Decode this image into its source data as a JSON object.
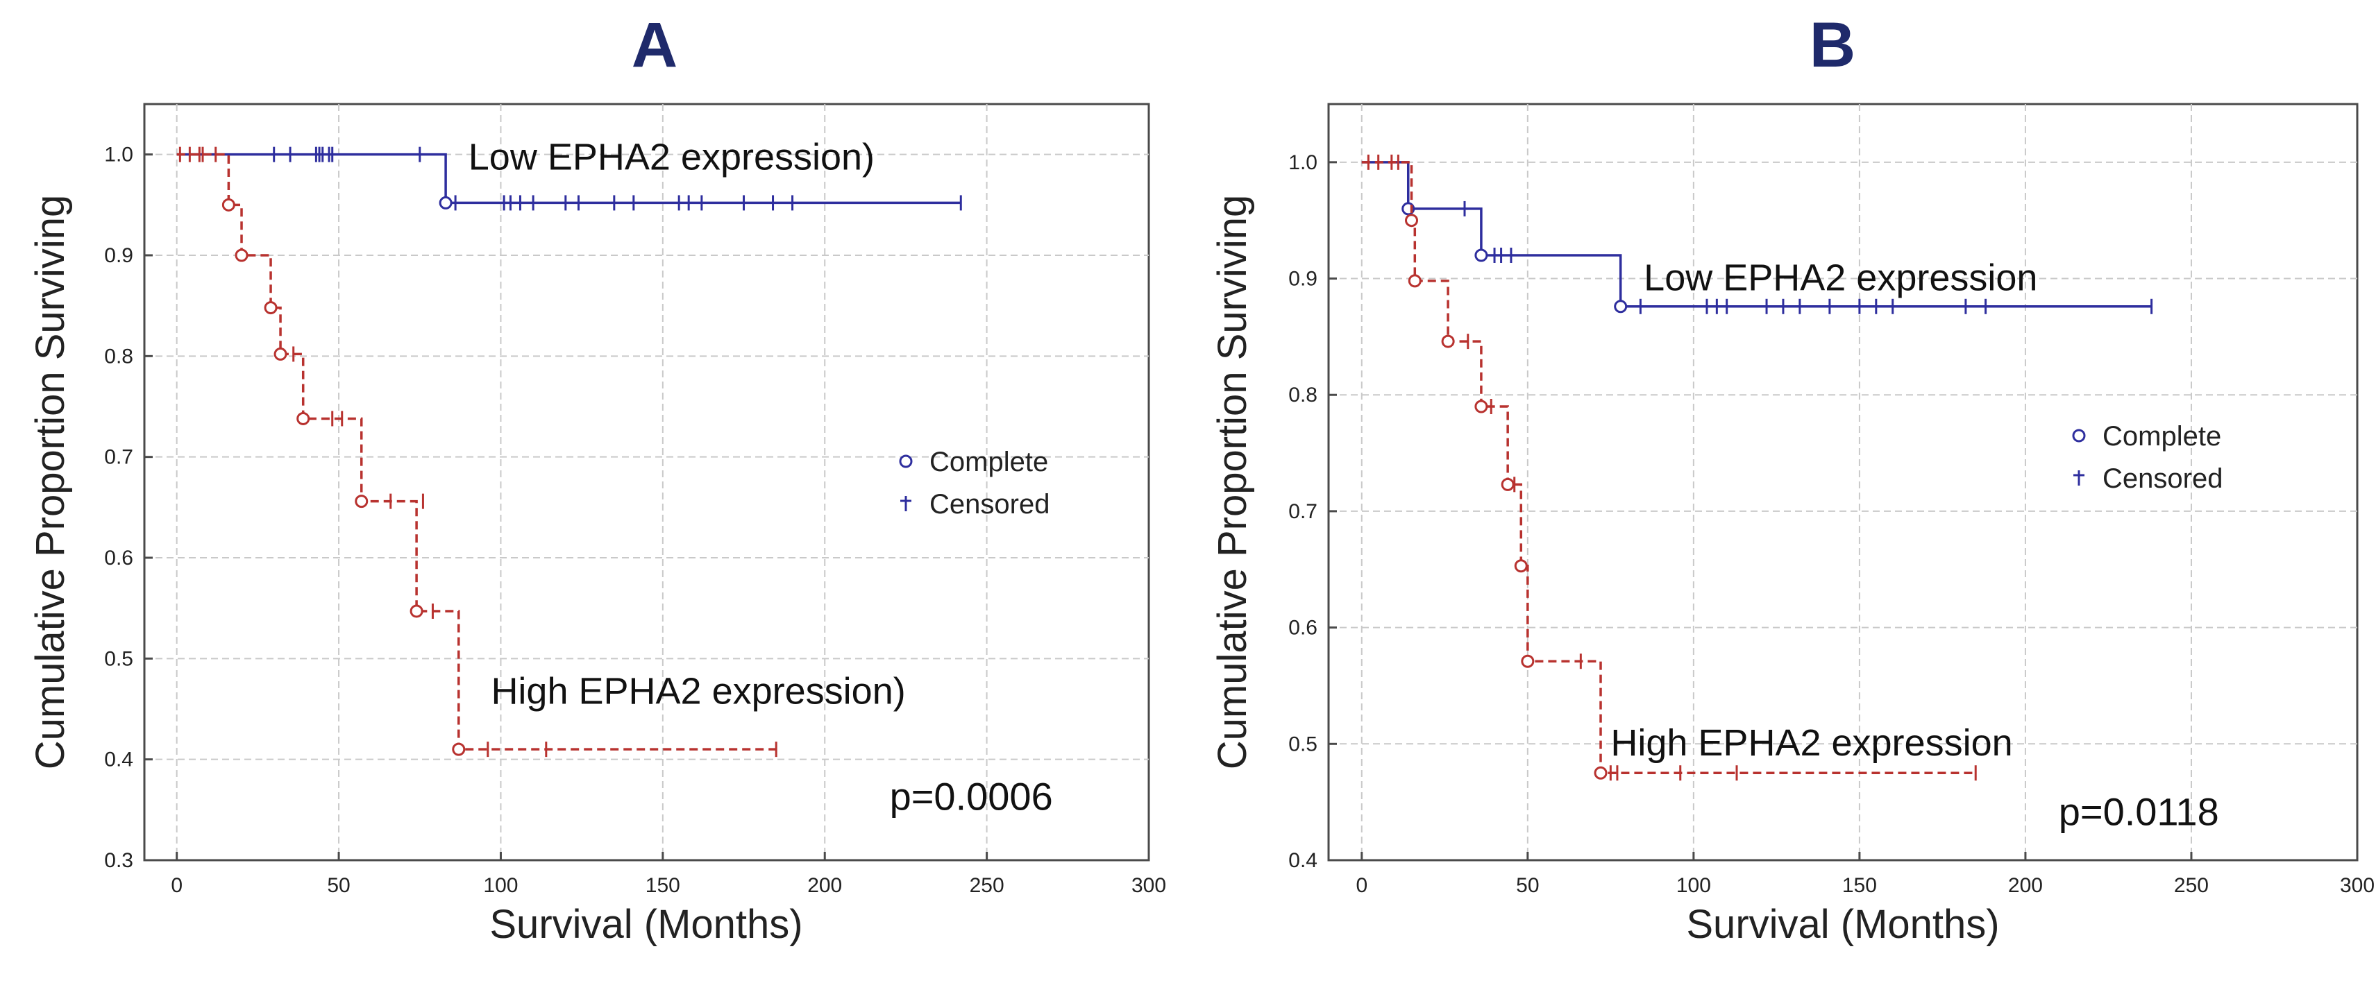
{
  "colors": {
    "low": "#2e2e9e",
    "high": "#b8322f",
    "title": "#1f2a6b"
  },
  "legend": {
    "complete": "Complete",
    "censored": "Censored"
  },
  "chart_data": [
    {
      "type": "line",
      "panel": "A",
      "title": "A",
      "xlabel": "Survival (Months)",
      "ylabel": "Cumulative Proportion Surviving",
      "xlim": [
        -10,
        300
      ],
      "ylim": [
        0.3,
        1.05
      ],
      "xticks": [
        0,
        50,
        100,
        150,
        200,
        250,
        300
      ],
      "yticks": [
        0.3,
        0.4,
        0.5,
        0.6,
        0.7,
        0.8,
        0.9,
        1.0
      ],
      "ytick_labels": [
        "0.3",
        "0.4",
        "0.5",
        "0.6",
        "0.7",
        "0.8",
        "0.9",
        "1.0"
      ],
      "legend_position": "center-right",
      "annotations": [
        {
          "text": "Low EPHA2 expression)",
          "x": 90,
          "y": 0.985
        },
        {
          "text": "High EPHA2 expression)",
          "x": 97,
          "y": 0.455
        },
        {
          "text": "p=0.0006",
          "x": 220,
          "y": 0.35
        }
      ],
      "pvalue": "p=0.0006",
      "series": [
        {
          "name": "Low EPHA2 expression",
          "color_key": "low",
          "dash": false,
          "steps": [
            [
              0,
              1.0
            ],
            [
              83,
              0.952
            ],
            [
              242,
              0.952
            ]
          ],
          "events": [
            [
              83,
              0.952
            ]
          ],
          "censored": [
            [
              30,
              1.0
            ],
            [
              35,
              1.0
            ],
            [
              43,
              1.0
            ],
            [
              44,
              1.0
            ],
            [
              45,
              1.0
            ],
            [
              47,
              1.0
            ],
            [
              48,
              1.0
            ],
            [
              75,
              1.0
            ],
            [
              86,
              0.952
            ],
            [
              101,
              0.952
            ],
            [
              103,
              0.952
            ],
            [
              106,
              0.952
            ],
            [
              110,
              0.952
            ],
            [
              120,
              0.952
            ],
            [
              124,
              0.952
            ],
            [
              135,
              0.952
            ],
            [
              141,
              0.952
            ],
            [
              155,
              0.952
            ],
            [
              158,
              0.952
            ],
            [
              162,
              0.952
            ],
            [
              175,
              0.952
            ],
            [
              184,
              0.952
            ],
            [
              190,
              0.952
            ],
            [
              242,
              0.952
            ]
          ]
        },
        {
          "name": "High EPHA2 expression",
          "color_key": "high",
          "dash": true,
          "steps": [
            [
              0,
              1.0
            ],
            [
              16,
              0.95
            ],
            [
              20,
              0.9
            ],
            [
              29,
              0.848
            ],
            [
              32,
              0.802
            ],
            [
              39,
              0.738
            ],
            [
              57,
              0.656
            ],
            [
              74,
              0.547
            ],
            [
              87,
              0.41
            ],
            [
              185,
              0.41
            ]
          ],
          "events": [
            [
              16,
              0.95
            ],
            [
              20,
              0.9
            ],
            [
              29,
              0.848
            ],
            [
              32,
              0.802
            ],
            [
              39,
              0.738
            ],
            [
              57,
              0.656
            ],
            [
              74,
              0.547
            ],
            [
              87,
              0.41
            ]
          ],
          "censored": [
            [
              1,
              1.0
            ],
            [
              4,
              1.0
            ],
            [
              7,
              1.0
            ],
            [
              8,
              1.0
            ],
            [
              12,
              1.0
            ],
            [
              36,
              0.802
            ],
            [
              48,
              0.738
            ],
            [
              51,
              0.738
            ],
            [
              66,
              0.656
            ],
            [
              76,
              0.656
            ],
            [
              79,
              0.547
            ],
            [
              96,
              0.41
            ],
            [
              114,
              0.41
            ],
            [
              185,
              0.41
            ]
          ]
        }
      ]
    },
    {
      "type": "line",
      "panel": "B",
      "title": "B",
      "xlabel": "Survival (Months)",
      "ylabel": "Cumulative Proportion Surviving",
      "xlim": [
        -10,
        300
      ],
      "ylim": [
        0.4,
        1.05
      ],
      "xticks": [
        0,
        50,
        100,
        150,
        200,
        250,
        300
      ],
      "yticks": [
        0.4,
        0.5,
        0.6,
        0.7,
        0.8,
        0.9,
        1.0
      ],
      "ytick_labels": [
        "0.4",
        "0.5",
        "0.6",
        "0.7",
        "0.8",
        "0.9",
        "1.0"
      ],
      "legend_position": "center-right",
      "annotations": [
        {
          "text": "Low EPHA2 expression",
          "x": 85,
          "y": 0.89
        },
        {
          "text": "High EPHA2 expression",
          "x": 75,
          "y": 0.49
        },
        {
          "text": "p=0.0118",
          "x": 210,
          "y": 0.43
        }
      ],
      "pvalue": "p=0.0118",
      "series": [
        {
          "name": "Low EPHA2 expression",
          "color_key": "low",
          "dash": false,
          "steps": [
            [
              0,
              1.0
            ],
            [
              14,
              0.96
            ],
            [
              36,
              0.92
            ],
            [
              78,
              0.876
            ],
            [
              238,
              0.876
            ]
          ],
          "events": [
            [
              14,
              0.96
            ],
            [
              36,
              0.92
            ],
            [
              78,
              0.876
            ]
          ],
          "censored": [
            [
              31,
              0.96
            ],
            [
              40,
              0.92
            ],
            [
              42,
              0.92
            ],
            [
              45,
              0.92
            ],
            [
              84,
              0.876
            ],
            [
              104,
              0.876
            ],
            [
              107,
              0.876
            ],
            [
              110,
              0.876
            ],
            [
              122,
              0.876
            ],
            [
              127,
              0.876
            ],
            [
              132,
              0.876
            ],
            [
              141,
              0.876
            ],
            [
              150,
              0.876
            ],
            [
              155,
              0.876
            ],
            [
              160,
              0.876
            ],
            [
              182,
              0.876
            ],
            [
              188,
              0.876
            ],
            [
              238,
              0.876
            ]
          ]
        },
        {
          "name": "High EPHA2 expression",
          "color_key": "high",
          "dash": true,
          "steps": [
            [
              0,
              1.0
            ],
            [
              15,
              0.95
            ],
            [
              16,
              0.898
            ],
            [
              26,
              0.846
            ],
            [
              36,
              0.79
            ],
            [
              44,
              0.723
            ],
            [
              48,
              0.653
            ],
            [
              50,
              0.571
            ],
            [
              72,
              0.475
            ],
            [
              185,
              0.475
            ]
          ],
          "events": [
            [
              15,
              0.95
            ],
            [
              16,
              0.898
            ],
            [
              26,
              0.846
            ],
            [
              36,
              0.79
            ],
            [
              44,
              0.723
            ],
            [
              48,
              0.653
            ],
            [
              50,
              0.571
            ],
            [
              72,
              0.475
            ]
          ],
          "censored": [
            [
              2,
              1.0
            ],
            [
              5,
              1.0
            ],
            [
              9,
              1.0
            ],
            [
              11,
              1.0
            ],
            [
              32,
              0.846
            ],
            [
              39,
              0.79
            ],
            [
              46,
              0.723
            ],
            [
              66,
              0.571
            ],
            [
              75,
              0.475
            ],
            [
              77,
              0.475
            ],
            [
              96,
              0.475
            ],
            [
              113,
              0.475
            ],
            [
              185,
              0.475
            ]
          ]
        }
      ]
    }
  ]
}
